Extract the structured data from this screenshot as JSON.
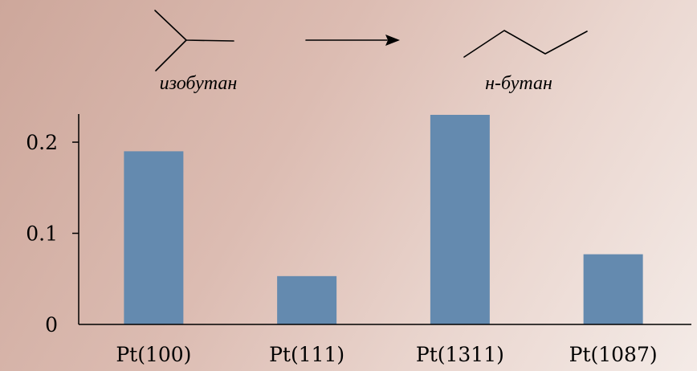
{
  "scheme": {
    "reactant_label": "изобутан",
    "product_label": "н-бутан",
    "reactant_icon": "isobutane-skeletal-structure",
    "arrow_icon": "reaction-arrow-icon",
    "product_icon": "n-butane-skeletal-structure"
  },
  "chart_data": {
    "type": "bar",
    "categories": [
      "Pt(100)",
      "Pt(111)",
      "Pt(1311)",
      "Pt(1087)"
    ],
    "values": [
      0.19,
      0.053,
      0.23,
      0.077
    ],
    "title": "",
    "xlabel": "",
    "ylabel": "",
    "ylim": [
      0,
      0.23
    ],
    "yticks": [
      0,
      0.1,
      0.2
    ],
    "ytick_labels": [
      "0",
      "0.1",
      "0.2"
    ],
    "grid": false,
    "legend": "none",
    "bar_color": "#648aaf"
  }
}
